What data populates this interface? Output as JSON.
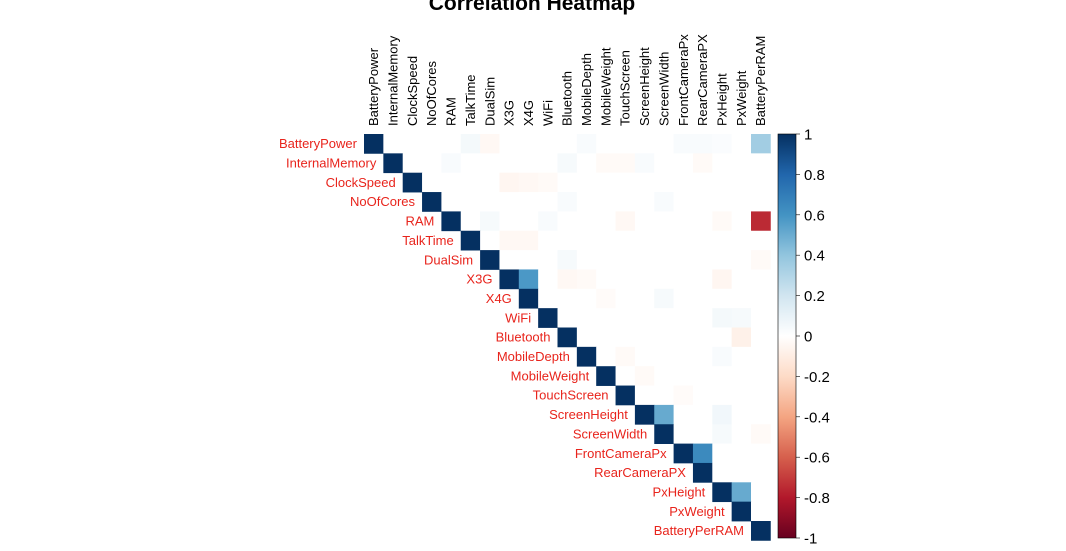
{
  "chart_data": {
    "type": "heatmap",
    "title": "Correlation Heatmap",
    "variables": [
      "BatteryPower",
      "InternalMemory",
      "ClockSpeed",
      "NoOfCores",
      "RAM",
      "TalkTime",
      "DualSim",
      "X3G",
      "X4G",
      "WiFi",
      "Bluetooth",
      "MobileDepth",
      "MobileWeight",
      "TouchScreen",
      "ScreenHeight",
      "ScreenWidth",
      "FrontCameraPx",
      "RearCameraPX",
      "PxHeight",
      "PxWeight",
      "BatteryPerRAM"
    ],
    "layout": "upper-triangle",
    "colorbar": {
      "range": [
        -1,
        1
      ],
      "ticks": [
        "1",
        "0.8",
        "0.6",
        "0.4",
        "0.2",
        "0",
        "-0.2",
        "-0.4",
        "-0.6",
        "-0.8",
        "-1"
      ],
      "colors": {
        "low": "#67001f",
        "mid": "#ffffff",
        "high": "#053061"
      }
    },
    "label_color": "#e8241c",
    "notable_correlations": [
      {
        "row": "BatteryPower",
        "col": "BatteryPerRAM",
        "value": 0.35
      },
      {
        "row": "RAM",
        "col": "BatteryPerRAM",
        "value": -0.75
      },
      {
        "row": "X3G",
        "col": "X4G",
        "value": 0.58
      },
      {
        "row": "ScreenHeight",
        "col": "ScreenWidth",
        "value": 0.51
      },
      {
        "row": "FrontCameraPx",
        "col": "RearCameraPX",
        "value": 0.64
      },
      {
        "row": "PxHeight",
        "col": "PxWeight",
        "value": 0.51
      }
    ],
    "background_correlations": [
      {
        "row": "BatteryPower",
        "col": "TalkTime",
        "value": 0.05
      },
      {
        "row": "BatteryPower",
        "col": "DualSim",
        "value": -0.04
      },
      {
        "row": "BatteryPower",
        "col": "MobileDepth",
        "value": 0.03
      },
      {
        "row": "BatteryPower",
        "col": "FrontCameraPx",
        "value": 0.03
      },
      {
        "row": "BatteryPower",
        "col": "RearCameraPX",
        "value": 0.03
      },
      {
        "row": "BatteryPower",
        "col": "PxHeight",
        "value": 0.02
      },
      {
        "row": "InternalMemory",
        "col": "RAM",
        "value": 0.03
      },
      {
        "row": "InternalMemory",
        "col": "Bluetooth",
        "value": 0.04
      },
      {
        "row": "InternalMemory",
        "col": "MobileWeight",
        "value": -0.03
      },
      {
        "row": "InternalMemory",
        "col": "TouchScreen",
        "value": -0.03
      },
      {
        "row": "InternalMemory",
        "col": "ScreenHeight",
        "value": 0.03
      },
      {
        "row": "InternalMemory",
        "col": "RearCameraPX",
        "value": -0.03
      },
      {
        "row": "ClockSpeed",
        "col": "X3G",
        "value": -0.05
      },
      {
        "row": "ClockSpeed",
        "col": "X4G",
        "value": -0.04
      },
      {
        "row": "ClockSpeed",
        "col": "WiFi",
        "value": -0.03
      },
      {
        "row": "NoOfCores",
        "col": "Bluetooth",
        "value": 0.03
      },
      {
        "row": "NoOfCores",
        "col": "ScreenWidth",
        "value": 0.03
      },
      {
        "row": "RAM",
        "col": "DualSim",
        "value": 0.04
      },
      {
        "row": "RAM",
        "col": "WiFi",
        "value": 0.03
      },
      {
        "row": "RAM",
        "col": "TouchScreen",
        "value": -0.04
      },
      {
        "row": "RAM",
        "col": "PxHeight",
        "value": -0.03
      },
      {
        "row": "TalkTime",
        "col": "X3G",
        "value": -0.04
      },
      {
        "row": "TalkTime",
        "col": "X4G",
        "value": -0.04
      },
      {
        "row": "DualSim",
        "col": "Bluetooth",
        "value": 0.04
      },
      {
        "row": "DualSim",
        "col": "BatteryPerRAM",
        "value": -0.03
      },
      {
        "row": "X3G",
        "col": "Bluetooth",
        "value": -0.04
      },
      {
        "row": "X3G",
        "col": "MobileDepth",
        "value": -0.03
      },
      {
        "row": "X3G",
        "col": "PxHeight",
        "value": -0.05
      },
      {
        "row": "X4G",
        "col": "MobileWeight",
        "value": -0.02
      },
      {
        "row": "X4G",
        "col": "ScreenWidth",
        "value": 0.04
      },
      {
        "row": "WiFi",
        "col": "PxHeight",
        "value": 0.05
      },
      {
        "row": "WiFi",
        "col": "PxWeight",
        "value": 0.04
      },
      {
        "row": "Bluetooth",
        "col": "PxWeight",
        "value": -0.08
      },
      {
        "row": "MobileDepth",
        "col": "TouchScreen",
        "value": -0.03
      },
      {
        "row": "MobileDepth",
        "col": "PxHeight",
        "value": 0.03
      },
      {
        "row": "MobileWeight",
        "col": "ScreenHeight",
        "value": -0.03
      },
      {
        "row": "TouchScreen",
        "col": "FrontCameraPx",
        "value": -0.02
      },
      {
        "row": "ScreenHeight",
        "col": "PxHeight",
        "value": 0.06
      },
      {
        "row": "ScreenWidth",
        "col": "PxHeight",
        "value": 0.04
      },
      {
        "row": "ScreenWidth",
        "col": "BatteryPerRAM",
        "value": -0.03
      }
    ]
  }
}
